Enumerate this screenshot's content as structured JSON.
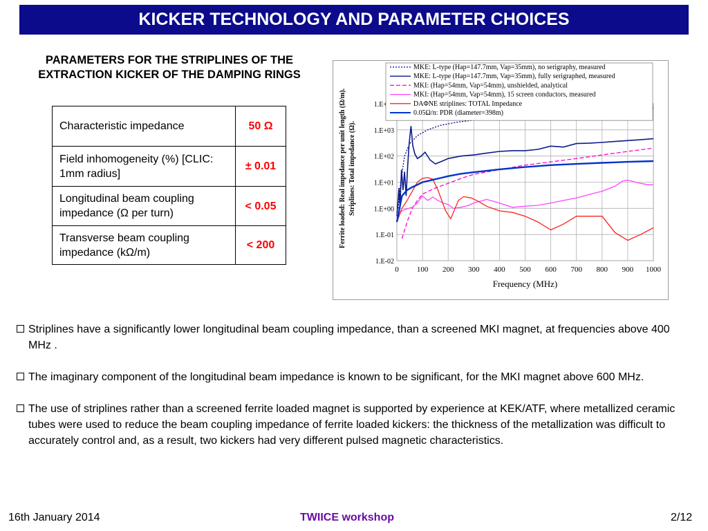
{
  "title": "KICKER TECHNOLOGY AND PARAMETER CHOICES",
  "table_heading": "PARAMETERS FOR THE STRIPLINES OF THE EXTRACTION KICKER OF THE DAMPING RINGS",
  "table": {
    "rows": [
      {
        "label": "Characteristic impedance",
        "value": "50 Ω"
      },
      {
        "label": "Field inhomogeneity (%) [CLIC: 1mm radius]",
        "value": "± 0.01"
      },
      {
        "label": "Longitudinal beam coupling impedance (Ω per turn)",
        "value": "< 0.05"
      },
      {
        "label": "Transverse beam coupling impedance (kΩ/m)",
        "value": "< 200"
      }
    ]
  },
  "chart_data": {
    "type": "line",
    "xlabel": "Frequency (MHz)",
    "ylabel": "Ferrite loaded: Real impedance per unit length (Ω/m). Striplines: Total impedance (Ω).",
    "x_ticks": [
      "0",
      "100",
      "200",
      "300",
      "400",
      "500",
      "600",
      "700",
      "800",
      "900",
      "1000"
    ],
    "y_ticks": [
      "1.E-02",
      "1.E-01",
      "1.E+00",
      "1.E+01",
      "1.E+02",
      "1.E+03",
      "1.E+04"
    ],
    "xlim": [
      0,
      1000
    ],
    "ylim": [
      0.01,
      10000
    ],
    "yscale": "log",
    "grid": true,
    "legend_position": "top",
    "series": [
      {
        "name": "MKE: L-type (Hap=147.7mm, Vap=35mm), no serigraphy, measured",
        "color": "#00008b",
        "style": "dotted",
        "x": [
          5,
          15,
          30,
          50,
          80,
          120,
          170,
          240,
          320,
          420,
          520,
          620,
          720,
          820,
          920,
          1000
        ],
        "y": [
          1,
          10,
          100,
          300,
          600,
          1000,
          1500,
          2000,
          2500,
          3000,
          3500,
          4000,
          4500,
          5000,
          6000,
          7000
        ]
      },
      {
        "name": "MKE: L-type (Hap=147.7mm, Vap=35mm), fully serigraphed, measured",
        "color": "#0a1a8a",
        "style": "solid",
        "x": [
          0,
          8,
          12,
          18,
          24,
          30,
          36,
          42,
          48,
          55,
          62,
          70,
          80,
          95,
          110,
          130,
          150,
          170,
          200,
          250,
          300,
          350,
          400,
          450,
          500,
          550,
          600,
          650,
          700,
          750,
          800,
          850,
          900,
          950,
          1000
        ],
        "y": [
          0.5,
          6,
          1.2,
          30,
          5,
          25,
          3,
          40,
          300,
          1400,
          250,
          120,
          80,
          100,
          140,
          70,
          50,
          60,
          80,
          100,
          110,
          130,
          150,
          160,
          160,
          180,
          240,
          220,
          300,
          310,
          330,
          360,
          390,
          420,
          460
        ]
      },
      {
        "name": "MKI: (Hap=54mm, Vap=54mm), unshielded, analytical",
        "color": "#ff00cc",
        "style": "dashed",
        "x": [
          20,
          40,
          60,
          80,
          100,
          150,
          200,
          250,
          300,
          400,
          500,
          600,
          700,
          800,
          900,
          1000
        ],
        "y": [
          0.07,
          0.3,
          1,
          2,
          3.5,
          6,
          9,
          14,
          20,
          30,
          45,
          60,
          80,
          110,
          150,
          200
        ]
      },
      {
        "name": "MKI: (Hap=54mm, Vap=54mm), 15 screen conductors, measured",
        "color": "#ff44ff",
        "style": "solid",
        "x": [
          0,
          30,
          60,
          80,
          100,
          120,
          140,
          160,
          180,
          200,
          220,
          250,
          280,
          300,
          350,
          400,
          450,
          500,
          550,
          600,
          650,
          700,
          750,
          800,
          850,
          880,
          900,
          950,
          980,
          1000
        ],
        "y": [
          0.6,
          0.9,
          1.1,
          1.6,
          3,
          2,
          2.7,
          2,
          1.6,
          1.4,
          1.0,
          1.1,
          1.3,
          1.6,
          2.2,
          1.6,
          1.1,
          1.2,
          1.3,
          1.6,
          2.0,
          2.5,
          3.4,
          4.5,
          7,
          11,
          12,
          9,
          8,
          8
        ]
      },
      {
        "name": "DAΦNE striplines: TOTAL Impedance",
        "color": "#ff2020",
        "style": "solid",
        "x": [
          0,
          20,
          40,
          60,
          80,
          100,
          120,
          140,
          160,
          190,
          210,
          240,
          260,
          290,
          320,
          350,
          400,
          450,
          500,
          550,
          600,
          650,
          700,
          750,
          800,
          850,
          900,
          950,
          1000
        ],
        "y": [
          0.3,
          1,
          2,
          4.5,
          10,
          14,
          15,
          13,
          5,
          0.8,
          0.4,
          2,
          2.8,
          2.5,
          1.8,
          1.2,
          0.8,
          0.7,
          0.5,
          0.3,
          0.15,
          0.25,
          0.5,
          0.5,
          0.5,
          0.12,
          0.06,
          0.1,
          0.18
        ]
      },
      {
        "name": "0.05Ω/n: PDR (diameter=398m)",
        "color": "#0033cc",
        "style": "solid",
        "x": [
          0,
          20,
          40,
          60,
          80,
          100,
          150,
          200,
          250,
          300,
          400,
          500,
          600,
          700,
          800,
          900,
          1000
        ],
        "y": [
          0.3,
          3,
          5,
          6.5,
          8,
          10,
          13,
          17,
          21,
          24,
          31,
          38,
          45,
          50,
          55,
          60,
          64
        ]
      }
    ]
  },
  "bullets": [
    "Striplines have a significantly lower longitudinal beam coupling impedance, than a screened MKI magnet, at frequencies above 400 MHz .",
    "The imaginary component of the longitudinal beam impedance is known to be significant, for the MKI magnet above 600 MHz.",
    "The use of striplines rather than a screened ferrite loaded magnet is supported by experience at KEK/ATF, where metallized ceramic tubes were used to reduce the beam coupling impedance of ferrite loaded kickers: the thickness of the metallization was difficult to accurately control and, as a result, two kickers had very different pulsed magnetic characteristics."
  ],
  "footer": {
    "date": "16th January 2014",
    "event": "TWIICE workshop",
    "page": "2/12"
  }
}
